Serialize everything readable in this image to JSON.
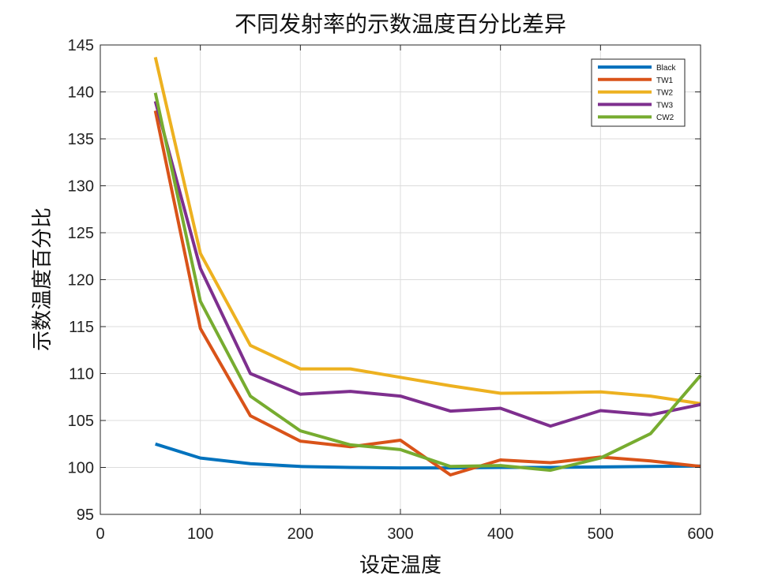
{
  "chart_data": {
    "type": "line",
    "title": "不同发射率的示数温度百分比差异",
    "xlabel": "设定温度",
    "ylabel": "示数温度百分比",
    "xlim": [
      0,
      600
    ],
    "ylim": [
      95,
      145
    ],
    "xticks": [
      0,
      100,
      200,
      300,
      400,
      500,
      600
    ],
    "yticks": [
      95,
      100,
      105,
      110,
      115,
      120,
      125,
      130,
      135,
      140,
      145
    ],
    "grid": true,
    "legend_position": "top-right",
    "x": [
      55,
      100,
      150,
      200,
      250,
      300,
      350,
      400,
      450,
      500,
      550,
      600
    ],
    "series": [
      {
        "name": "Black",
        "color": "#0072BD",
        "values": [
          102.5,
          101.0,
          100.4,
          100.1,
          100.0,
          99.95,
          99.95,
          100.0,
          100.0,
          100.05,
          100.1,
          100.15
        ]
      },
      {
        "name": "TW1",
        "color": "#D95319",
        "values": [
          138.0,
          114.8,
          105.5,
          102.8,
          102.2,
          102.9,
          99.2,
          100.8,
          100.5,
          101.1,
          100.7,
          100.1
        ]
      },
      {
        "name": "TW2",
        "color": "#EDB120",
        "values": [
          143.7,
          122.8,
          113.0,
          110.5,
          110.5,
          109.6,
          108.7,
          107.9,
          107.95,
          108.05,
          107.6,
          106.8
        ]
      },
      {
        "name": "TW3",
        "color": "#7E2F8E",
        "values": [
          139.0,
          121.2,
          110.0,
          107.8,
          108.1,
          107.6,
          106.0,
          106.3,
          104.4,
          106.05,
          105.6,
          106.7
        ]
      },
      {
        "name": "CW2",
        "color": "#77AC30",
        "values": [
          139.9,
          117.7,
          107.6,
          103.9,
          102.4,
          101.9,
          100.1,
          100.2,
          99.7,
          101.0,
          103.6,
          109.8
        ]
      }
    ]
  }
}
